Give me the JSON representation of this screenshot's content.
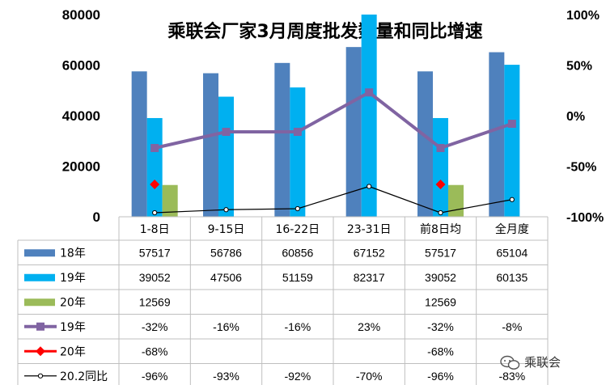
{
  "chart_data": {
    "type": "bar",
    "title": "乘联会厂家3月周度批发数量和同比增速",
    "categories": [
      "1-8日",
      "9-15日",
      "16-22日",
      "23-31日",
      "前8日均",
      "全月度"
    ],
    "y_left": {
      "min": 0,
      "max": 80000,
      "ticks": [
        "0",
        "20000",
        "40000",
        "60000",
        "80000"
      ]
    },
    "y_right": {
      "min": -100,
      "max": 100,
      "ticks": [
        "-100%",
        "-50%",
        "0%",
        "50%",
        "100%"
      ]
    },
    "bar_series": [
      {
        "name": "18年",
        "color": "#4f81bd",
        "values": [
          57517,
          56786,
          60856,
          67152,
          57517,
          65104
        ],
        "labels": [
          "57517",
          "56786",
          "60856",
          "67152",
          "57517",
          "65104"
        ]
      },
      {
        "name": "19年",
        "color": "#00b0f0",
        "values": [
          39052,
          47506,
          51159,
          82317,
          39052,
          60135
        ],
        "labels": [
          "39052",
          "47506",
          "51159",
          "82317",
          "39052",
          "60135"
        ]
      },
      {
        "name": "20年",
        "color": "#9bbb59",
        "values": [
          12569,
          null,
          null,
          null,
          12569,
          null
        ],
        "labels": [
          "12569",
          "",
          "",
          "",
          "12569",
          ""
        ]
      }
    ],
    "line_series": [
      {
        "name": "19年",
        "color": "#8064a2",
        "marker": "square",
        "values": [
          -32,
          -16,
          -16,
          23,
          -32,
          -8
        ],
        "labels": [
          "-32%",
          "-16%",
          "-16%",
          "23%",
          "-32%",
          "-8%"
        ]
      },
      {
        "name": "20年",
        "color": "#ff0000",
        "marker": "diamond",
        "values": [
          -68,
          null,
          null,
          null,
          -68,
          null
        ],
        "labels": [
          "-68%",
          "",
          "",
          "",
          "-68%",
          ""
        ]
      },
      {
        "name": "20.2同比",
        "color": "#000000",
        "marker": "circle",
        "values": [
          -96,
          -93,
          -92,
          -70,
          -96,
          -83
        ],
        "labels": [
          "-96%",
          "-93%",
          "-92%",
          "-70%",
          "-96%",
          "-83%"
        ]
      }
    ]
  },
  "watermark": {
    "text": "乘联会"
  }
}
